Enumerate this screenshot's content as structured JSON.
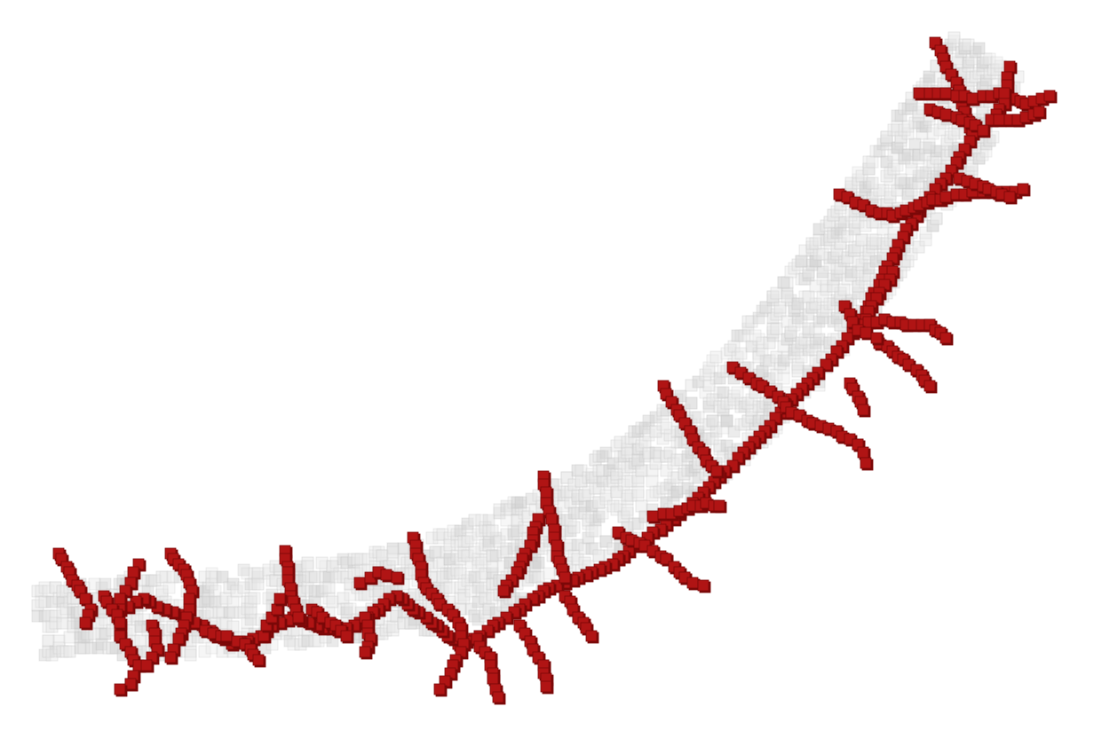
{
  "scene": {
    "subject": "voxel-vessel-render",
    "colors": {
      "background": "#ffffff",
      "shell_fill": "#e8e8e8",
      "shell_edge": "#c8c8c8",
      "shell_shadow": "#d2d2d2",
      "branch_fill": "#b01414",
      "branch_dark": "#7a0808",
      "branch_light": "#d22a2a"
    }
  }
}
